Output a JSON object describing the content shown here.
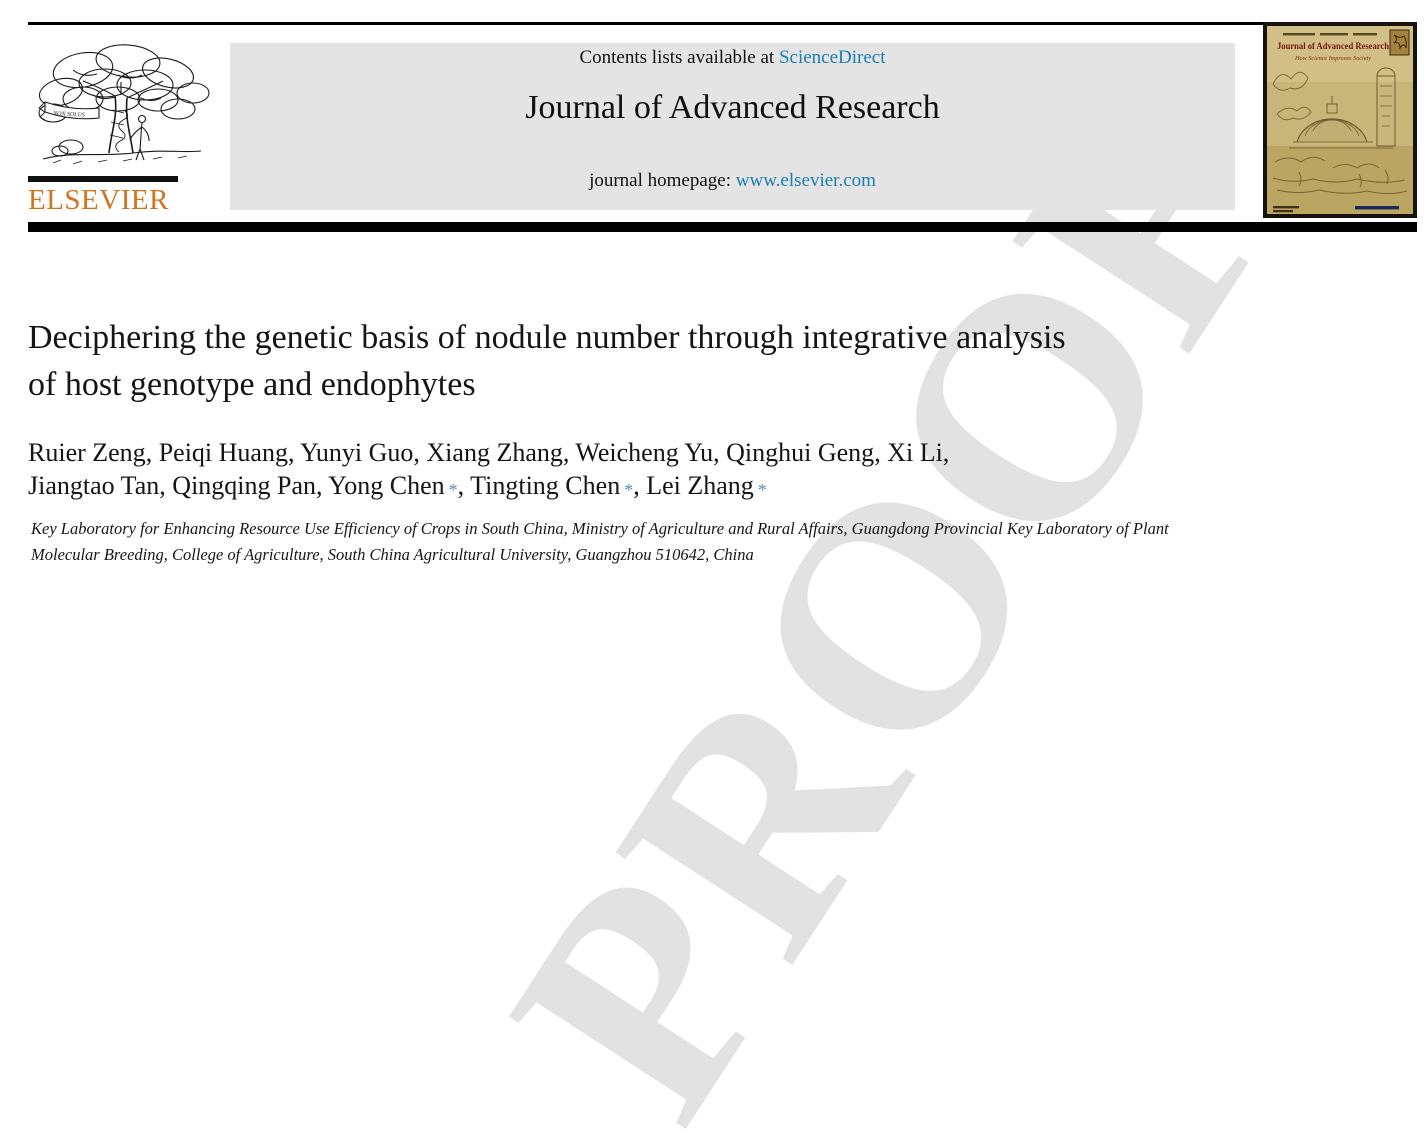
{
  "watermark": {
    "text": "PROOF"
  },
  "header": {
    "elsevier_logo": {
      "wordmark": "ELSEVIER",
      "banner_motto": "NON SOLUS"
    },
    "banner": {
      "contents_prefix": "Contents lists available at ",
      "contents_link": "ScienceDirect",
      "journal_title": "Journal of Advanced Research",
      "homepage_prefix": "journal homepage: ",
      "homepage_link": "www.elsevier.com"
    },
    "cover_thumbnail": {
      "title": "Journal of Advanced Research",
      "subtitle": "How Science Improves Society"
    }
  },
  "article": {
    "title_lines": [
      "Deciphering the genetic basis of nodule number through integrative analysis",
      "of host genotype and endophytes"
    ],
    "corresponding_marker": "*",
    "author_lines": [
      {
        "authors": [
          {
            "name": "Ruier Zeng"
          },
          {
            "name": "Peiqi Huang"
          },
          {
            "name": "Yunyi Guo"
          },
          {
            "name": "Xiang Zhang"
          },
          {
            "name": "Weicheng Yu"
          },
          {
            "name": "Qinghui Geng"
          },
          {
            "name": "Xi Li"
          }
        ],
        "line_end": ","
      },
      {
        "authors": [
          {
            "name": "Jiangtao Tan"
          },
          {
            "name": "Qingqing Pan"
          },
          {
            "name": "Yong Chen",
            "corresponding": true
          },
          {
            "name": "Tingting Chen",
            "corresponding": true
          },
          {
            "name": "Lei Zhang",
            "corresponding": true
          }
        ],
        "line_end": ""
      }
    ],
    "affiliation_lines": [
      "Key Laboratory for Enhancing Resource Use Efficiency of Crops in South China, Ministry of Agriculture and Rural Affairs, Guangdong Provincial Key Laboratory of Plant",
      "Molecular Breeding, College of Agriculture, South China Agricultural University, Guangzhou 510642, China"
    ]
  },
  "colors": {
    "link_blue": "#1b7eb4",
    "elsevier_orange": "#d4731d",
    "banner_gray": "#e4e4e4",
    "watermark_gray": "#e2e2e2",
    "cover_tan": "#c8b579",
    "cover_title_maroon": "#7b1510",
    "marker_blue": "#4d8fc4"
  }
}
